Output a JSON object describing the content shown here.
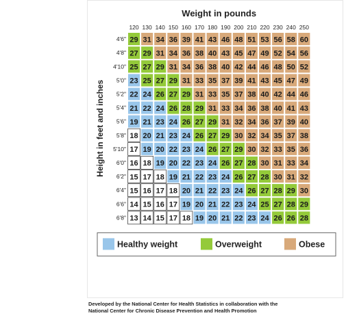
{
  "chart_data": {
    "type": "table",
    "title": "Weight in pounds",
    "ylabel": "Height in feet and inches",
    "weights": [
      "120",
      "130",
      "140",
      "150",
      "160",
      "170",
      "180",
      "190",
      "200",
      "210",
      "220",
      "230",
      "240",
      "250"
    ],
    "heights": [
      "4'6\"",
      "4'8\"",
      "4'10\"",
      "5'0\"",
      "5'2\"",
      "5'4\"",
      "5'6\"",
      "5'8\"",
      "5'10\"",
      "6'0\"",
      "6'2\"",
      "6'4\"",
      "6'6\"",
      "6'8\""
    ],
    "bmi": [
      [
        29,
        31,
        34,
        36,
        39,
        41,
        43,
        46,
        48,
        51,
        53,
        56,
        58,
        60
      ],
      [
        27,
        29,
        31,
        34,
        36,
        38,
        40,
        43,
        45,
        47,
        49,
        52,
        54,
        56
      ],
      [
        25,
        27,
        29,
        31,
        34,
        36,
        38,
        40,
        42,
        44,
        46,
        48,
        50,
        52
      ],
      [
        23,
        25,
        27,
        29,
        31,
        33,
        35,
        37,
        39,
        41,
        43,
        45,
        47,
        49
      ],
      [
        22,
        24,
        26,
        27,
        29,
        31,
        33,
        35,
        37,
        38,
        40,
        42,
        44,
        46
      ],
      [
        21,
        22,
        24,
        26,
        28,
        29,
        31,
        33,
        34,
        36,
        38,
        40,
        41,
        43
      ],
      [
        19,
        21,
        23,
        24,
        26,
        27,
        29,
        31,
        32,
        34,
        36,
        37,
        39,
        40
      ],
      [
        18,
        20,
        21,
        23,
        24,
        26,
        27,
        29,
        30,
        32,
        34,
        35,
        37,
        38
      ],
      [
        17,
        19,
        20,
        22,
        23,
        24,
        26,
        27,
        29,
        30,
        32,
        33,
        35,
        36
      ],
      [
        16,
        18,
        19,
        20,
        22,
        23,
        24,
        26,
        27,
        28,
        30,
        31,
        33,
        34
      ],
      [
        15,
        17,
        18,
        19,
        21,
        22,
        23,
        24,
        26,
        27,
        28,
        30,
        31,
        32
      ],
      [
        15,
        16,
        17,
        18,
        20,
        21,
        22,
        23,
        24,
        26,
        27,
        28,
        29,
        30
      ],
      [
        14,
        15,
        16,
        17,
        19,
        20,
        21,
        22,
        23,
        24,
        25,
        27,
        28,
        29
      ],
      [
        13,
        14,
        15,
        17,
        18,
        19,
        20,
        21,
        22,
        23,
        24,
        26,
        26,
        28
      ]
    ],
    "categories": [
      {
        "name": "Healthy weight",
        "range": [
          18.5,
          24.9
        ],
        "color": "#99c6ea"
      },
      {
        "name": "Overweight",
        "range": [
          25,
          29.9
        ],
        "color": "#94ca3a"
      },
      {
        "name": "Obese",
        "range": [
          30,
          60
        ],
        "color": "#d8a97a"
      }
    ],
    "underweight_color": "#ffffff"
  },
  "footer": {
    "line1": "Developed by the National Center for Health Statistics in collaboration with the",
    "line2": "National Center for Chronic Disease Prevention and Health Promotion"
  }
}
